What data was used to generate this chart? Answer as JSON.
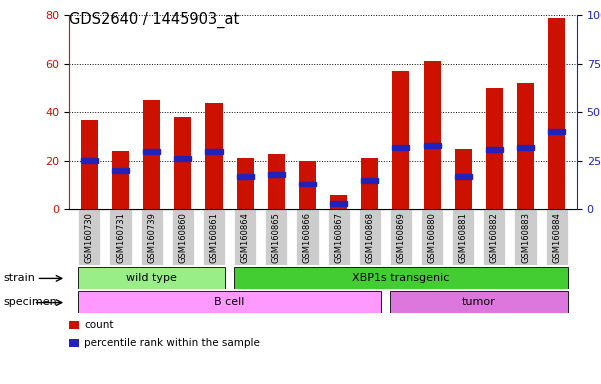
{
  "title": "GDS2640 / 1445903_at",
  "samples": [
    "GSM160730",
    "GSM160731",
    "GSM160739",
    "GSM160860",
    "GSM160861",
    "GSM160864",
    "GSM160865",
    "GSM160866",
    "GSM160867",
    "GSM160868",
    "GSM160869",
    "GSM160880",
    "GSM160881",
    "GSM160882",
    "GSM160883",
    "GSM160884"
  ],
  "count_values": [
    37,
    24,
    45,
    38,
    44,
    21,
    23,
    20,
    6,
    21,
    57,
    61,
    25,
    50,
    52,
    79
  ],
  "percentile_values": [
    25,
    20,
    30,
    26,
    30,
    17,
    18,
    13,
    3,
    15,
    32,
    33,
    17,
    31,
    32,
    40
  ],
  "left_ylim": [
    0,
    80
  ],
  "right_ylim": [
    0,
    100
  ],
  "left_yticks": [
    0,
    20,
    40,
    60,
    80
  ],
  "right_yticks": [
    0,
    25,
    50,
    75,
    100
  ],
  "right_yticklabels": [
    "0",
    "25",
    "50",
    "75",
    "100%"
  ],
  "bar_color": "#cc1100",
  "percentile_color": "#2222bb",
  "left_axis_color": "#cc1100",
  "right_axis_color": "#2222bb",
  "strain_groups": [
    {
      "label": "wild type",
      "start": 0,
      "end": 4,
      "color": "#99ee88"
    },
    {
      "label": "XBP1s transgenic",
      "start": 5,
      "end": 15,
      "color": "#44cc33"
    }
  ],
  "specimen_groups": [
    {
      "label": "B cell",
      "start": 0,
      "end": 9,
      "color": "#ff99ff"
    },
    {
      "label": "tumor",
      "start": 10,
      "end": 15,
      "color": "#dd77dd"
    }
  ],
  "legend_items": [
    {
      "label": "count",
      "color": "#cc1100"
    },
    {
      "label": "percentile rank within the sample",
      "color": "#2222bb"
    }
  ],
  "bar_width": 0.55,
  "tick_label_fontsize": 6.0,
  "title_fontsize": 10.5,
  "xlim": [
    -0.65,
    15.65
  ],
  "tick_bg_color": "#cccccc"
}
